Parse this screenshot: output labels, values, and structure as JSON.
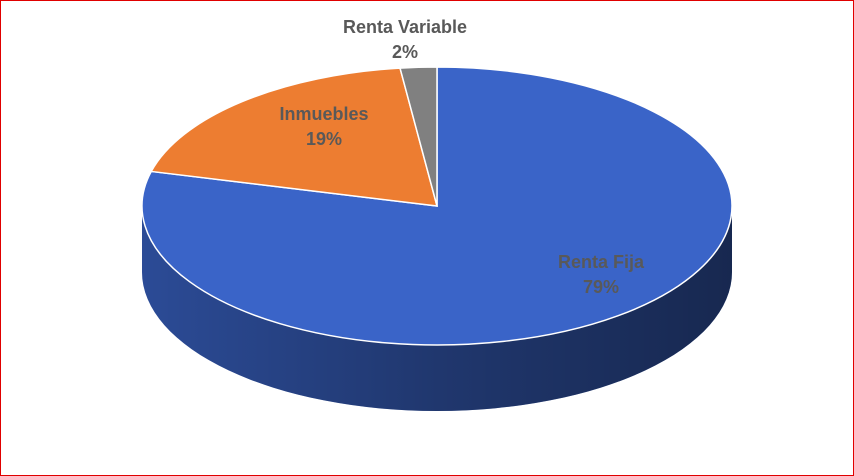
{
  "chart_data": {
    "type": "pie",
    "categories": [
      "Renta Fija",
      "Inmuebles",
      "Renta Variable"
    ],
    "values": [
      79,
      19,
      2
    ],
    "value_labels": [
      "79%",
      "19%",
      "2%"
    ],
    "colors": [
      "#3a64c8",
      "#ed7d31",
      "#808080"
    ],
    "three_d": true
  }
}
